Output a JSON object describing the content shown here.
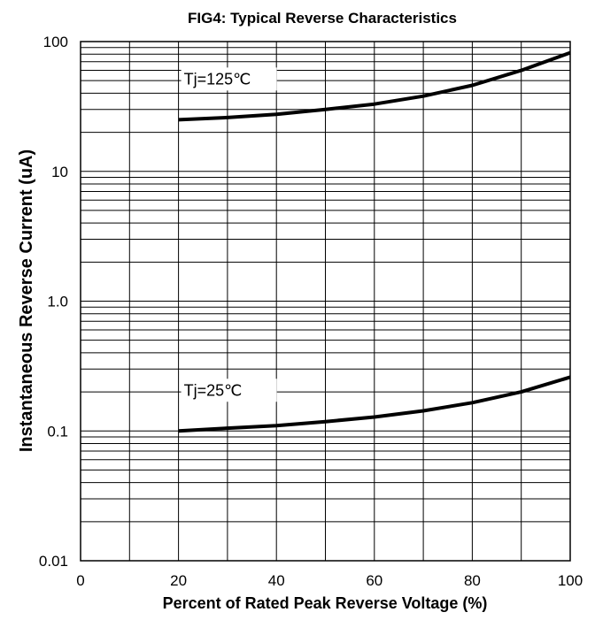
{
  "chart_data": {
    "type": "line",
    "title": "FIG4:  Typical Reverse Characteristics",
    "xlabel": "Percent of Rated Peak Reverse Voltage (%)",
    "ylabel": "Instantaneous Reverse Current (uA)",
    "xlim": [
      0,
      100
    ],
    "ylim": [
      0.01,
      100
    ],
    "yscale": "log",
    "grid": true,
    "x_ticks": [
      "0",
      "20",
      "40",
      "60",
      "80",
      "100"
    ],
    "y_ticks": [
      "0.01",
      "0.1",
      "1.0",
      "10",
      "100"
    ],
    "series": [
      {
        "name": "Tj=125℃",
        "x": [
          20,
          30,
          40,
          50,
          60,
          70,
          80,
          90,
          100
        ],
        "y": [
          25,
          26,
          27.5,
          30,
          33,
          38,
          46,
          60,
          82
        ]
      },
      {
        "name": "Tj=25℃",
        "x": [
          20,
          30,
          40,
          50,
          60,
          70,
          80,
          90,
          100
        ],
        "y": [
          0.1,
          0.105,
          0.11,
          0.118,
          0.128,
          0.143,
          0.165,
          0.2,
          0.26
        ]
      }
    ]
  }
}
